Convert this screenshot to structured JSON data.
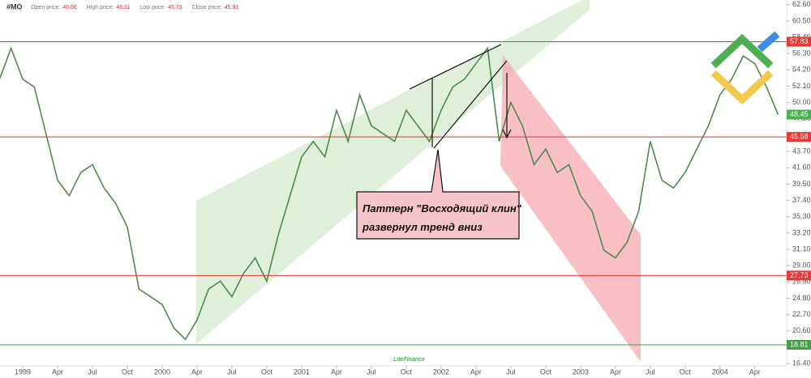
{
  "chart_data": {
    "type": "line",
    "title": "#MO",
    "ohlc": [
      {
        "label": "Open price:",
        "value": 46.06
      },
      {
        "label": "High price:",
        "value": 46.11
      },
      {
        "label": "Low price:",
        "value": 45.73
      },
      {
        "label": "Close price:",
        "value": 45.91
      }
    ],
    "x": [
      "1998-11",
      "1998-12",
      "1999-01",
      "1999-02",
      "1999-03",
      "1999-04",
      "1999-05",
      "1999-06",
      "1999-07",
      "1999-08",
      "1999-09",
      "1999-10",
      "1999-11",
      "1999-12",
      "2000-01",
      "2000-02",
      "2000-03",
      "2000-04",
      "2000-05",
      "2000-06",
      "2000-07",
      "2000-08",
      "2000-09",
      "2000-10",
      "2000-11",
      "2000-12",
      "2001-01",
      "2001-02",
      "2001-03",
      "2001-04",
      "2001-05",
      "2001-06",
      "2001-07",
      "2001-08",
      "2001-09",
      "2001-10",
      "2001-11",
      "2001-12",
      "2002-01",
      "2002-02",
      "2002-03",
      "2002-04",
      "2002-05",
      "2002-06",
      "2002-07",
      "2002-08",
      "2002-09",
      "2002-10",
      "2002-11",
      "2002-12",
      "2003-01",
      "2003-02",
      "2003-03",
      "2003-04",
      "2003-05",
      "2003-06",
      "2003-07",
      "2003-08",
      "2003-09",
      "2003-10",
      "2003-11",
      "2003-12",
      "2004-01",
      "2004-02",
      "2004-03",
      "2004-04",
      "2004-05",
      "2004-06"
    ],
    "series": [
      {
        "name": "MO",
        "color": "#4f8a4f",
        "values": [
          53,
          57,
          53,
          52,
          46,
          40,
          38,
          41,
          42,
          39,
          37,
          34,
          26,
          25,
          24,
          21,
          19.5,
          22,
          26,
          27,
          25,
          28,
          30,
          27,
          33,
          38,
          43,
          45,
          43,
          49,
          45,
          51,
          47,
          46,
          45,
          49,
          47,
          45,
          49,
          52,
          53,
          55,
          57,
          45,
          50,
          47,
          42,
          44,
          41,
          42,
          38,
          36,
          31,
          30,
          32,
          36,
          45,
          40,
          39,
          41,
          44,
          47,
          51,
          53,
          56,
          55,
          52,
          48.45
        ]
      }
    ],
    "ylim": [
      16.1,
      63.2
    ],
    "yticks": [
      {
        "value": 62.6,
        "label": "62.60"
      },
      {
        "value": 60.5,
        "label": "60.50"
      },
      {
        "value": 58.4,
        "label": "58.40"
      },
      {
        "value": 56.3,
        "label": "56.30"
      },
      {
        "value": 54.2,
        "label": "54.20"
      },
      {
        "value": 52.1,
        "label": "52.10"
      },
      {
        "value": 50,
        "label": "50.00"
      },
      {
        "value": 47.9,
        "label": "47.90"
      },
      {
        "value": 45.8,
        "label": "45.80"
      },
      {
        "value": 43.7,
        "label": "43.70"
      },
      {
        "value": 41.6,
        "label": "41.60"
      },
      {
        "value": 39.5,
        "label": "39.50"
      },
      {
        "value": 37.4,
        "label": "37.40"
      },
      {
        "value": 35.3,
        "label": "35.30"
      },
      {
        "value": 33.2,
        "label": "33.20"
      },
      {
        "value": 31.1,
        "label": "31.10"
      },
      {
        "value": 29,
        "label": "29.00"
      },
      {
        "value": 26.9,
        "label": "26.90"
      },
      {
        "value": 24.8,
        "label": "24.80"
      },
      {
        "value": 22.7,
        "label": "22.70"
      },
      {
        "value": 20.6,
        "label": "20.60"
      },
      {
        "value": 18.5,
        "label": "18.50"
      },
      {
        "value": 16.4,
        "label": "16.40"
      }
    ],
    "xticks": [
      {
        "value": "1999-01",
        "label": "1999"
      },
      {
        "value": "1999-04",
        "label": "Apr"
      },
      {
        "value": "1999-07",
        "label": "Jul"
      },
      {
        "value": "1999-10",
        "label": "Oct"
      },
      {
        "value": "2000-01",
        "label": "2000"
      },
      {
        "value": "2000-04",
        "label": "Apr"
      },
      {
        "value": "2000-07",
        "label": "Jul"
      },
      {
        "value": "2000-10",
        "label": "Oct"
      },
      {
        "value": "2001-01",
        "label": "2001"
      },
      {
        "value": "2001-04",
        "label": "Apr"
      },
      {
        "value": "2001-07",
        "label": "Jul"
      },
      {
        "value": "2001-10",
        "label": "Oct"
      },
      {
        "value": "2002-01",
        "label": "2002"
      },
      {
        "value": "2002-04",
        "label": "Apr"
      },
      {
        "value": "2002-07",
        "label": "Jul"
      },
      {
        "value": "2002-10",
        "label": "Oct"
      },
      {
        "value": "2003-01",
        "label": "2003"
      },
      {
        "value": "2003-04",
        "label": "Apr"
      },
      {
        "value": "2003-07",
        "label": "Jul"
      },
      {
        "value": "2003-10",
        "label": "Oct"
      },
      {
        "value": "2004-01",
        "label": "2004"
      },
      {
        "value": "2004-04",
        "label": "Apr"
      }
    ],
    "levels": [
      {
        "value": 57.83,
        "color": "#e53935"
      },
      {
        "value": 45.58,
        "color": "#e53935"
      },
      {
        "value": 27.73,
        "color": "#e53935"
      },
      {
        "value": 18.81,
        "color": "#43a047"
      }
    ],
    "last_price": {
      "value": 48.45,
      "color": "#4caf50"
    },
    "annotation": [
      "Паттерн \"Восходящий клин\"",
      "развернул тренд вниз"
    ],
    "watermark": "LiteFinance"
  }
}
